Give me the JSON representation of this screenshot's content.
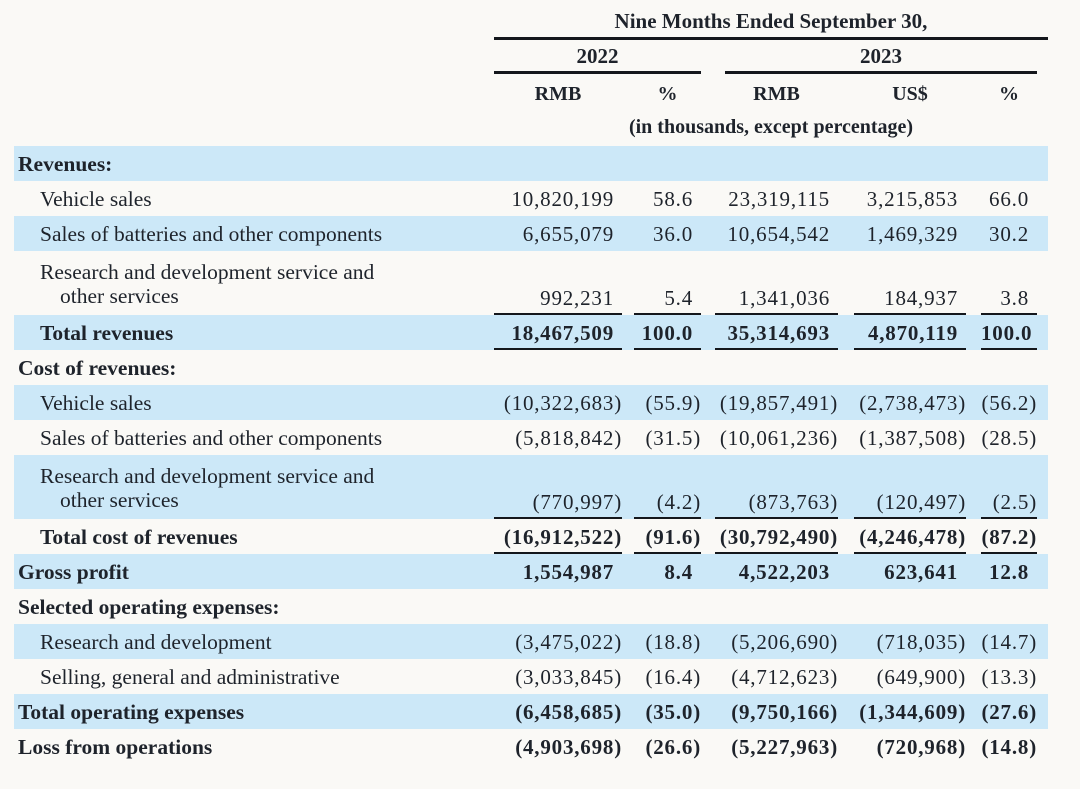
{
  "header": {
    "period_title": "Nine Months Ended September 30,",
    "group_2022": "2022",
    "group_2023": "2023",
    "columns": [
      "RMB",
      "%",
      "RMB",
      "US$",
      "%"
    ],
    "units_note": "(in thousands, except percentage)"
  },
  "table": {
    "rows": [
      {
        "label": "Revenues:",
        "v": [
          "",
          "",
          "",
          "",
          ""
        ]
      },
      {
        "label": "Vehicle sales",
        "v": [
          "10,820,199",
          "58.6",
          "23,319,115",
          "3,215,853",
          "66.0"
        ]
      },
      {
        "label": "Sales of batteries and other components",
        "v": [
          "6,655,079",
          "36.0",
          "10,654,542",
          "1,469,329",
          "30.2"
        ]
      },
      {
        "label": "Research and development service and\nother services",
        "v": [
          "992,231",
          "5.4",
          "1,341,036",
          "184,937",
          "3.8"
        ]
      },
      {
        "label": "Total revenues",
        "v": [
          "18,467,509",
          "100.0",
          "35,314,693",
          "4,870,119",
          "100.0"
        ]
      },
      {
        "label": "Cost of revenues:",
        "v": [
          "",
          "",
          "",
          "",
          ""
        ]
      },
      {
        "label": "Vehicle sales",
        "v": [
          "(10,322,683)",
          "(55.9)",
          "(19,857,491)",
          "(2,738,473)",
          "(56.2)"
        ]
      },
      {
        "label": "Sales of batteries and other components",
        "v": [
          "(5,818,842)",
          "(31.5)",
          "(10,061,236)",
          "(1,387,508)",
          "(28.5)"
        ]
      },
      {
        "label": "Research and development service and\nother services",
        "v": [
          "(770,997)",
          "(4.2)",
          "(873,763)",
          "(120,497)",
          "(2.5)"
        ]
      },
      {
        "label": "Total cost of revenues",
        "v": [
          "(16,912,522)",
          "(91.6)",
          "(30,792,490)",
          "(4,246,478)",
          "(87.2)"
        ]
      },
      {
        "label": "Gross profit",
        "v": [
          "1,554,987",
          "8.4",
          "4,522,203",
          "623,641",
          "12.8"
        ]
      },
      {
        "label": "Selected operating expenses:",
        "v": [
          "",
          "",
          "",
          "",
          ""
        ]
      },
      {
        "label": "Research and development",
        "v": [
          "(3,475,022)",
          "(18.8)",
          "(5,206,690)",
          "(718,035)",
          "(14.7)"
        ]
      },
      {
        "label": "Selling, general and administrative",
        "v": [
          "(3,033,845)",
          "(16.4)",
          "(4,712,623)",
          "(649,900)",
          "(13.3)"
        ]
      },
      {
        "label": "Total operating expenses",
        "v": [
          "(6,458,685)",
          "(35.0)",
          "(9,750,166)",
          "(1,344,609)",
          "(27.6)"
        ]
      },
      {
        "label": "Loss from operations",
        "v": [
          "(4,903,698)",
          "(26.6)",
          "(5,227,963)",
          "(720,968)",
          "(14.8)"
        ]
      }
    ]
  },
  "colors": {
    "row_highlight": "#cce8f8",
    "text": "#1e232b"
  }
}
